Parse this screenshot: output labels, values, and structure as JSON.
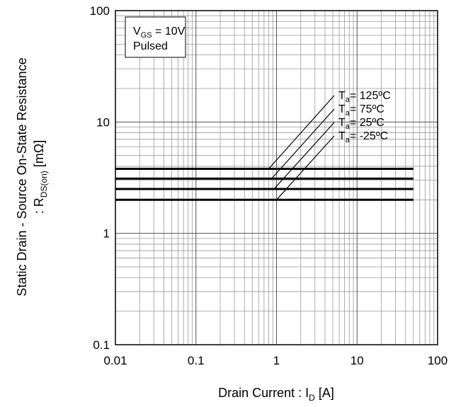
{
  "chart_data": {
    "type": "line",
    "x_scale": "log",
    "y_scale": "log",
    "xlim": [
      0.01,
      100
    ],
    "ylim": [
      0.1,
      100
    ],
    "x_ticks": [
      "0.01",
      "0.1",
      "1",
      "10",
      "100"
    ],
    "y_ticks": [
      "0.1",
      "1",
      "10",
      "100"
    ],
    "xlabel": {
      "main": "Drain Current : I",
      "sub": "D",
      "tail": " [A]"
    },
    "ylabel": {
      "line1": "Static Drain - Source On-State Resistance",
      "line2": {
        "main": ": R",
        "sub": "DS(on)",
        "tail": " [mΩ]"
      }
    },
    "grid": true,
    "conditions_box": {
      "line1": {
        "main": "V",
        "sub": "GS",
        "tail": " = 10V"
      },
      "line2": "Pulsed"
    },
    "series": [
      {
        "label": {
          "main": "T",
          "sub": "a",
          "tail": "= 125ºC"
        },
        "x": [
          0.01,
          50
        ],
        "y": [
          3.8,
          3.8
        ],
        "label_anchor_x": 0.8
      },
      {
        "label": {
          "main": "T",
          "sub": "a",
          "tail": "= 75ºC"
        },
        "x": [
          0.01,
          50
        ],
        "y": [
          3.1,
          3.1
        ],
        "label_anchor_x": 0.87
      },
      {
        "label": {
          "main": "T",
          "sub": "a",
          "tail": "= 25ºC"
        },
        "x": [
          0.01,
          50
        ],
        "y": [
          2.5,
          2.5
        ],
        "label_anchor_x": 0.93
      },
      {
        "label": {
          "main": "T",
          "sub": "a",
          "tail": "= -25ºC"
        },
        "x": [
          0.01,
          50
        ],
        "y": [
          2.0,
          2.0
        ],
        "label_anchor_x": 1.0
      }
    ]
  }
}
